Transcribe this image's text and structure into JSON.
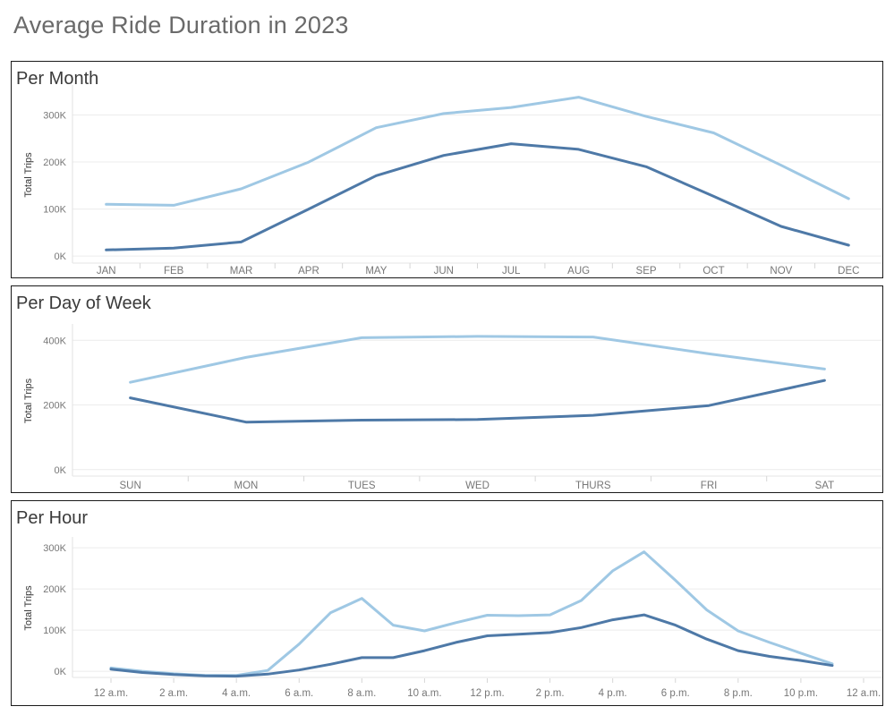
{
  "title": "Average Ride Duration in 2023",
  "colors": {
    "series_light": "#9fc8e4",
    "series_dark": "#4e79a7"
  },
  "chart_data": [
    {
      "type": "line",
      "title": "Per Month",
      "ylabel": "Total Trips",
      "ylim": [
        -15000,
        360000
      ],
      "yticks": [
        0,
        100000,
        200000,
        300000
      ],
      "ytick_labels": [
        "0K",
        "100K",
        "200K",
        "300K"
      ],
      "categories": [
        "JAN",
        "FEB",
        "MAR",
        "APR",
        "MAY",
        "JUN",
        "JUL",
        "AUG",
        "SEP",
        "OCT",
        "NOV",
        "DEC"
      ],
      "grid": true,
      "series": [
        {
          "color": "#9fc8e4",
          "values": [
            110000,
            108000,
            143000,
            200000,
            273000,
            303000,
            316000,
            338000,
            297000,
            262000,
            193000,
            122000
          ]
        },
        {
          "color": "#4e79a7",
          "values": [
            13000,
            17000,
            30000,
            100000,
            171000,
            214000,
            239000,
            227000,
            190000,
            127000,
            63000,
            23000
          ]
        }
      ]
    },
    {
      "type": "line",
      "title": "Per Day of Week",
      "ylabel": "Total Trips",
      "ylim": [
        -20000,
        445000
      ],
      "yticks": [
        0,
        200000,
        400000
      ],
      "ytick_labels": [
        "0K",
        "200K",
        "400K"
      ],
      "categories": [
        "SUN",
        "MON",
        "TUES",
        "WED",
        "THURS",
        "FRI",
        "SAT"
      ],
      "grid": true,
      "series": [
        {
          "color": "#9fc8e4",
          "values": [
            270000,
            347000,
            408000,
            412000,
            410000,
            358000,
            311000
          ]
        },
        {
          "color": "#4e79a7",
          "values": [
            222000,
            147000,
            153000,
            155000,
            168000,
            198000,
            276000
          ]
        }
      ]
    },
    {
      "type": "line",
      "title": "Per Hour",
      "ylabel": "Total Trips",
      "ylim": [
        -15000,
        322000
      ],
      "yticks": [
        0,
        100000,
        200000,
        300000
      ],
      "ytick_labels": [
        "0K",
        "100K",
        "200K",
        "300K"
      ],
      "x_labels": [
        "12 a.m.",
        "2 a.m.",
        "4 a.m.",
        "6 a.m.",
        "8 a.m.",
        "10 a.m.",
        "12 p.m.",
        "2 p.m.",
        "4 p.m.",
        "6 p.m.",
        "8 p.m.",
        "10 p.m.",
        "12 a.m."
      ],
      "x_label_hours": [
        0,
        2,
        4,
        6,
        8,
        10,
        12,
        14,
        16,
        18,
        20,
        22,
        24
      ],
      "x": [
        0,
        1,
        2,
        3,
        4,
        5,
        6,
        7,
        8,
        9,
        10,
        11,
        12,
        13,
        14,
        15,
        16,
        17,
        18,
        19,
        20,
        21,
        22,
        23
      ],
      "grid": true,
      "series": [
        {
          "color": "#9fc8e4",
          "values": [
            8000,
            0,
            -6000,
            -10000,
            -10000,
            2000,
            66000,
            142000,
            177000,
            112000,
            98000,
            118000,
            136000,
            135000,
            137000,
            172000,
            244000,
            290000,
            221000,
            149000,
            98000,
            70000,
            44000,
            18000
          ]
        },
        {
          "color": "#4e79a7",
          "values": [
            5000,
            -3000,
            -8000,
            -11000,
            -12000,
            -7000,
            3000,
            17000,
            33000,
            33000,
            50000,
            70000,
            86000,
            90000,
            94000,
            106000,
            125000,
            137000,
            112000,
            78000,
            50000,
            36000,
            26000,
            14000
          ]
        }
      ]
    }
  ]
}
